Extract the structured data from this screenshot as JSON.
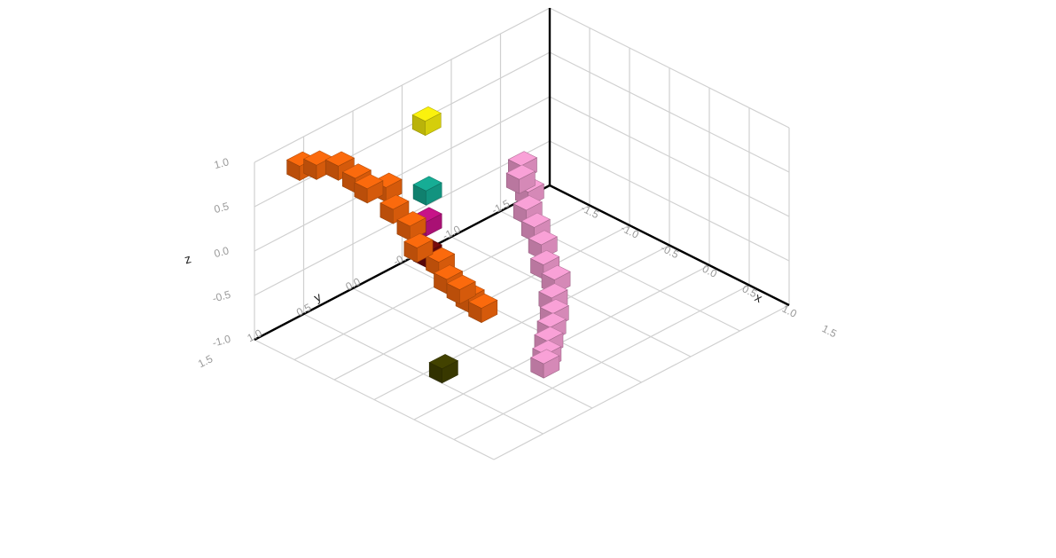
{
  "chart_data": {
    "type": "voxel-3d",
    "title": "",
    "axes": {
      "x": {
        "label": "x",
        "range": [
          -1.5,
          1.5
        ],
        "ticks": [
          "-1.5",
          "-1.0",
          "-0.5",
          "0.0",
          "0.5",
          "1.0",
          "1.5"
        ]
      },
      "y": {
        "label": "y",
        "range": [
          -1.5,
          1.5
        ],
        "ticks": [
          "-1.5",
          "-1.0",
          "-0.5",
          "0.0",
          "0.5",
          "1.0",
          "1.5"
        ]
      },
      "z": {
        "label": "z",
        "range": [
          -1.0,
          1.0
        ],
        "ticks": [
          "-1.0",
          "-0.5",
          "0.0",
          "0.5",
          "1.0"
        ]
      }
    },
    "grid": true,
    "legend": "none",
    "series": [
      {
        "color": "#e8620c",
        "voxels": [
          [
            -1.1,
            1.35,
            1.05
          ],
          [
            -0.95,
            1.3,
            1.1
          ],
          [
            -0.8,
            1.2,
            1.1
          ],
          [
            -0.65,
            1.15,
            1.0
          ],
          [
            -0.5,
            1.15,
            0.95
          ],
          [
            -0.45,
            1.0,
            0.9
          ],
          [
            -0.3,
            1.05,
            0.75
          ],
          [
            -0.15,
            1.0,
            0.6
          ],
          [
            0.0,
            1.05,
            0.45
          ],
          [
            0.15,
            0.95,
            0.3
          ],
          [
            0.25,
            0.95,
            0.15
          ],
          [
            0.35,
            0.9,
            0.05
          ],
          [
            0.4,
            0.85,
            -0.05
          ],
          [
            0.5,
            0.8,
            -0.15
          ]
        ]
      },
      {
        "color": "#e795c7",
        "voxels": [
          [
            -1.1,
            -0.9,
            -0.25
          ],
          [
            -1.0,
            -0.8,
            -0.3
          ],
          [
            -0.95,
            -0.85,
            -0.45
          ],
          [
            -0.85,
            -0.75,
            -0.55
          ],
          [
            -0.75,
            -0.75,
            -0.7
          ],
          [
            -0.6,
            -0.7,
            -0.8
          ],
          [
            -0.45,
            -0.6,
            -0.9
          ],
          [
            -0.25,
            -0.55,
            -0.95
          ],
          [
            -0.1,
            -0.4,
            -1.0
          ],
          [
            0.1,
            -0.25,
            -1.0
          ],
          [
            0.25,
            -0.1,
            -1.0
          ],
          [
            0.4,
            0.05,
            -1.0
          ],
          [
            0.5,
            0.15,
            -1.05
          ],
          [
            0.6,
            0.25,
            -1.05
          ]
        ]
      },
      {
        "color": "#14a08a",
        "voxels": [
          [
            -0.75,
            0.35,
            0.35
          ]
        ]
      },
      {
        "color": "#b8127e",
        "voxels": [
          [
            -0.75,
            0.35,
            0.0
          ]
        ]
      },
      {
        "color": "#6e0a0c",
        "voxels": [
          [
            -0.75,
            0.35,
            -0.35
          ]
        ]
      },
      {
        "color": "#3d3d00",
        "voxels": [
          [
            0.5,
            1.2,
            -0.6
          ]
        ]
      },
      {
        "color": "#e8e00c",
        "voxels": [
          [
            -1.5,
            -0.25,
            0.45
          ]
        ]
      }
    ]
  }
}
